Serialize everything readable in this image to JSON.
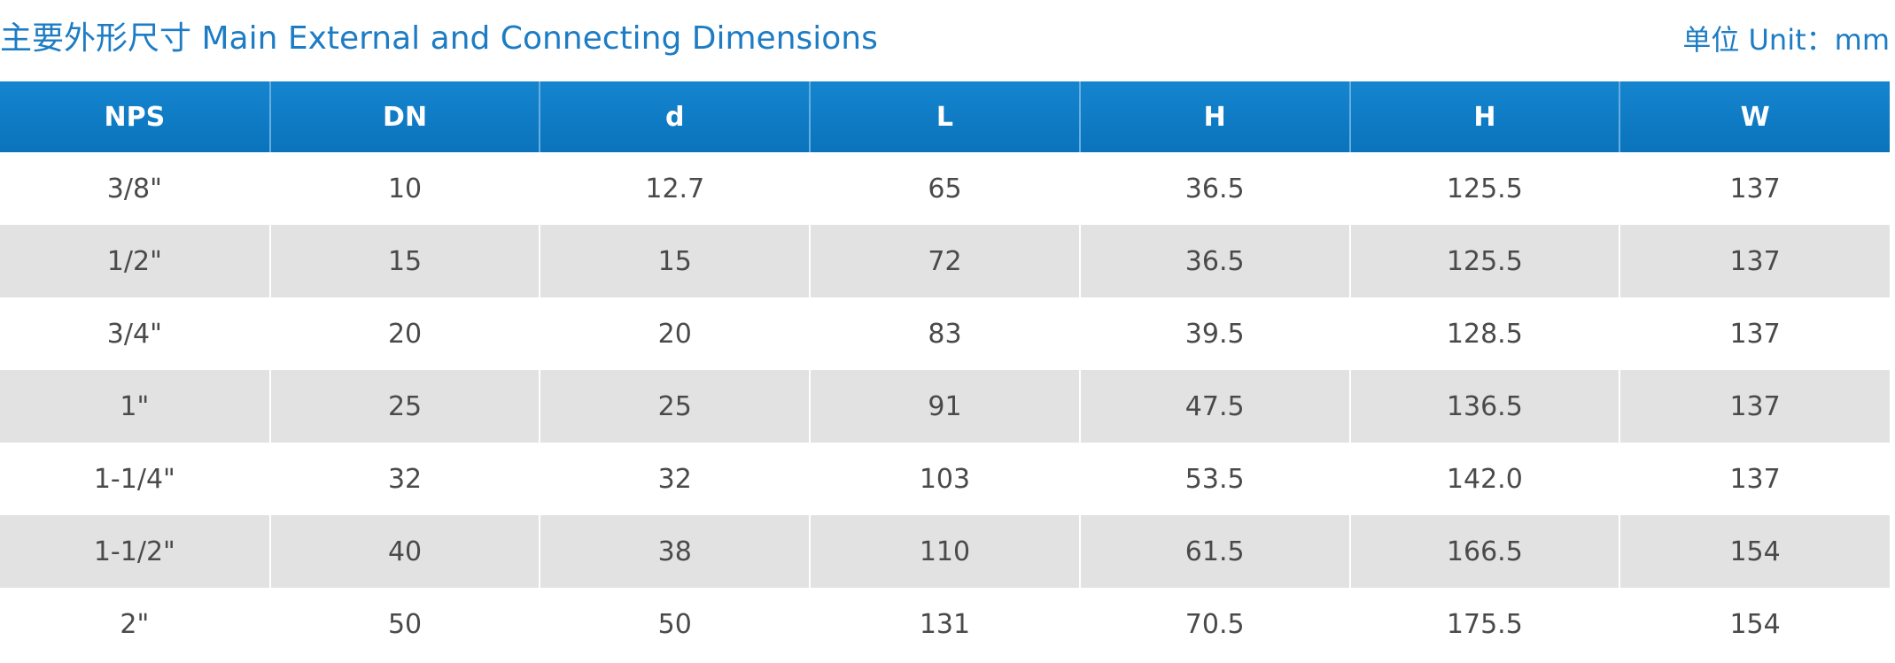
{
  "title": "主要外形尺寸 Main External and Connecting Dimensions",
  "unit": "单位 Unit：mm",
  "table": {
    "headers": [
      "NPS",
      "DN",
      "d",
      "L",
      "H",
      "H",
      "W"
    ],
    "rows": [
      [
        "3/8\"",
        "10",
        "12.7",
        "65",
        "36.5",
        "125.5",
        "137"
      ],
      [
        "1/2\"",
        "15",
        "15",
        "72",
        "36.5",
        "125.5",
        "137"
      ],
      [
        "3/4\"",
        "20",
        "20",
        "83",
        "39.5",
        "128.5",
        "137"
      ],
      [
        "1\"",
        "25",
        "25",
        "91",
        "47.5",
        "136.5",
        "137"
      ],
      [
        "1-1/4\"",
        "32",
        "32",
        "103",
        "53.5",
        "142.0",
        "137"
      ],
      [
        "1-1/2\"",
        "40",
        "38",
        "110",
        "61.5",
        "166.5",
        "154"
      ],
      [
        "2\"",
        "50",
        "50",
        "131",
        "70.5",
        "175.5",
        "154"
      ]
    ]
  },
  "colors": {
    "accent": "#1d7cc4",
    "header_bg": "#0f7cc6",
    "stripe": "#e2e2e2"
  }
}
